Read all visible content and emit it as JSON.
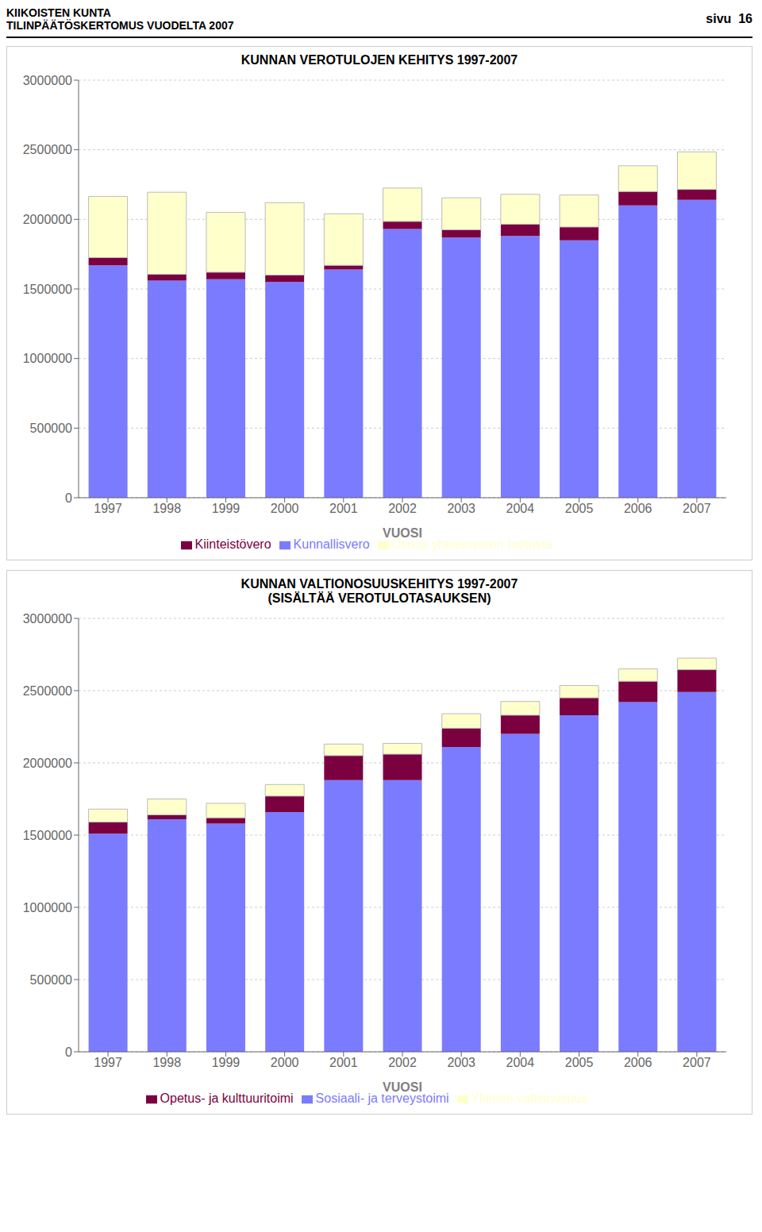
{
  "chart_data": [
    {
      "type": "bar",
      "title": "KUNNAN VEROTULOJEN KEHITYS 1997-2007",
      "annotations": [
        "KIIKOISTEN KUNTA",
        "TILINPÄÄTÖSKERTOMUS VUODELTA 2007",
        "sivu  16"
      ],
      "xlabel": "VUOSI",
      "categories": [
        "1997",
        "1998",
        "1999",
        "2000",
        "2001",
        "2002",
        "2003",
        "2004",
        "2005",
        "2006",
        "2007"
      ],
      "series": [
        {
          "name": "Kunnallisvero",
          "color": "#7b7bff",
          "values": [
            1670000,
            1560000,
            1570000,
            1550000,
            1640000,
            1930000,
            1870000,
            1880000,
            1850000,
            2100000,
            2140000
          ]
        },
        {
          "name": "Kiinteistövero",
          "color": "#7b0040",
          "values": [
            55000,
            45000,
            50000,
            50000,
            30000,
            55000,
            55000,
            85000,
            95000,
            100000,
            75000
          ]
        },
        {
          "name": "Osuus yhteisoveron tuotosta",
          "color": "#ffffcc",
          "values": [
            440000,
            590000,
            430000,
            520000,
            370000,
            240000,
            230000,
            215000,
            230000,
            185000,
            270000
          ]
        }
      ],
      "ylim": [
        0,
        3000000
      ],
      "yticks": [
        0,
        500000,
        1000000,
        1500000,
        2000000,
        2500000,
        3000000
      ],
      "stacked": true,
      "grid": true,
      "legend": "bottom"
    },
    {
      "type": "bar",
      "title": "KUNNAN VALTIONOSUUSKEHITYS 1997-2007",
      "subtitle": "(SISÄLTÄÄ VEROTULOTASAUKSEN)",
      "xlabel": "VUOSI",
      "categories": [
        "1997",
        "1998",
        "1999",
        "2000",
        "2001",
        "2002",
        "2003",
        "2004",
        "2005",
        "2006",
        "2007"
      ],
      "series": [
        {
          "name": "Sosiaali- ja terveystoimi",
          "color": "#7b7bff",
          "values": [
            1510000,
            1610000,
            1580000,
            1660000,
            1880000,
            1880000,
            2110000,
            2200000,
            2330000,
            2420000,
            2490000
          ]
        },
        {
          "name": "Opetus- ja kulttuuritoimi",
          "color": "#7b0040",
          "values": [
            80000,
            30000,
            40000,
            110000,
            170000,
            180000,
            130000,
            130000,
            120000,
            145000,
            155000
          ]
        },
        {
          "name": "Yleinen valtionosuus",
          "color": "#ffffcc",
          "values": [
            90000,
            110000,
            100000,
            80000,
            80000,
            75000,
            100000,
            95000,
            85000,
            85000,
            80000
          ]
        }
      ],
      "ylim": [
        0,
        3000000
      ],
      "yticks": [
        0,
        500000,
        1000000,
        1500000,
        2000000,
        2500000,
        3000000
      ],
      "stacked": true,
      "grid": true,
      "legend": "bottom"
    }
  ]
}
